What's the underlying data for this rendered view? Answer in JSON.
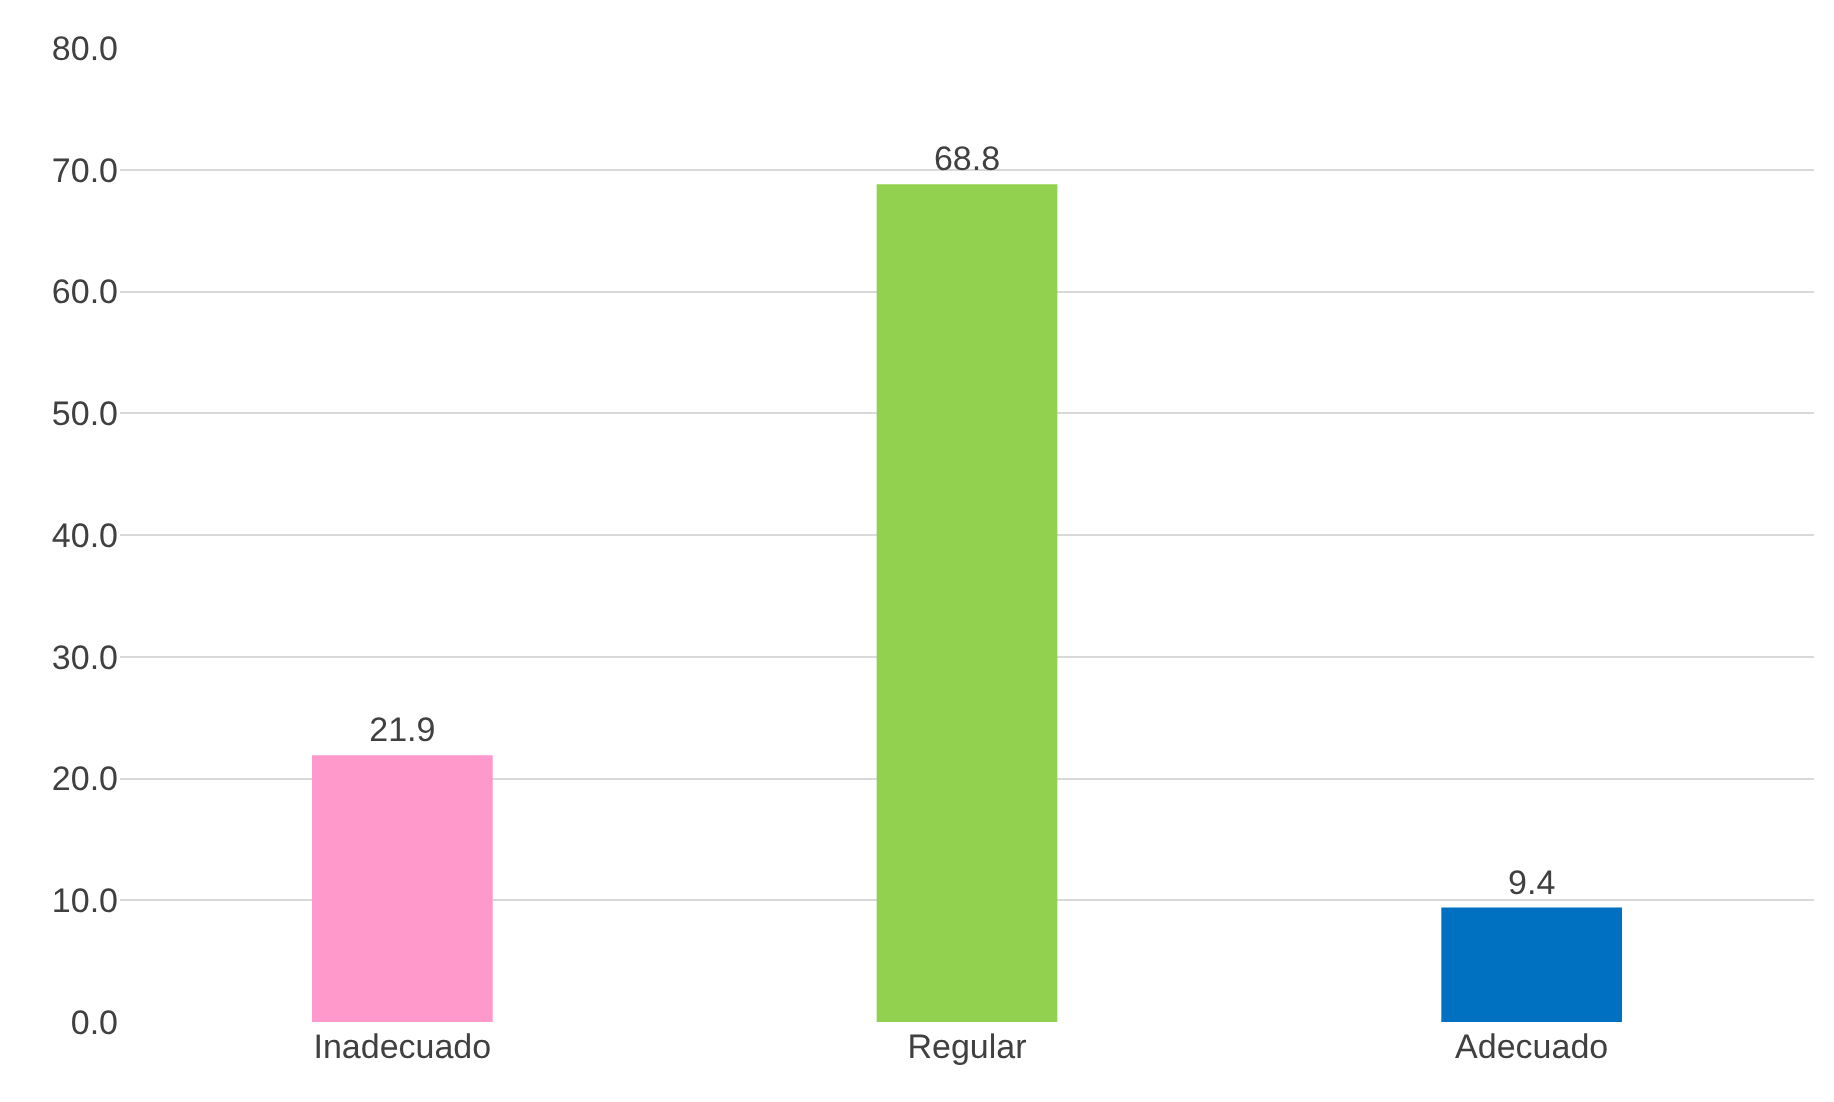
{
  "chart_data": {
    "type": "bar",
    "categories": [
      "Inadecuado",
      "Regular",
      "Adecuado"
    ],
    "values": [
      21.9,
      68.8,
      9.4
    ],
    "colors": [
      "#ff99cc",
      "#92d050",
      "#0070c0"
    ],
    "ylim": [
      0,
      80
    ],
    "yticks": [
      {
        "value": 0,
        "label": "0.0"
      },
      {
        "value": 10,
        "label": "10.0"
      },
      {
        "value": 20,
        "label": "20.0"
      },
      {
        "value": 30,
        "label": "30.0"
      },
      {
        "value": 40,
        "label": "40.0"
      },
      {
        "value": 50,
        "label": "50.0"
      },
      {
        "value": 60,
        "label": "60.0"
      },
      {
        "value": 70,
        "label": "70.0"
      },
      {
        "value": 80,
        "label": "80.0"
      }
    ],
    "grid": "y",
    "data_labels": true
  }
}
